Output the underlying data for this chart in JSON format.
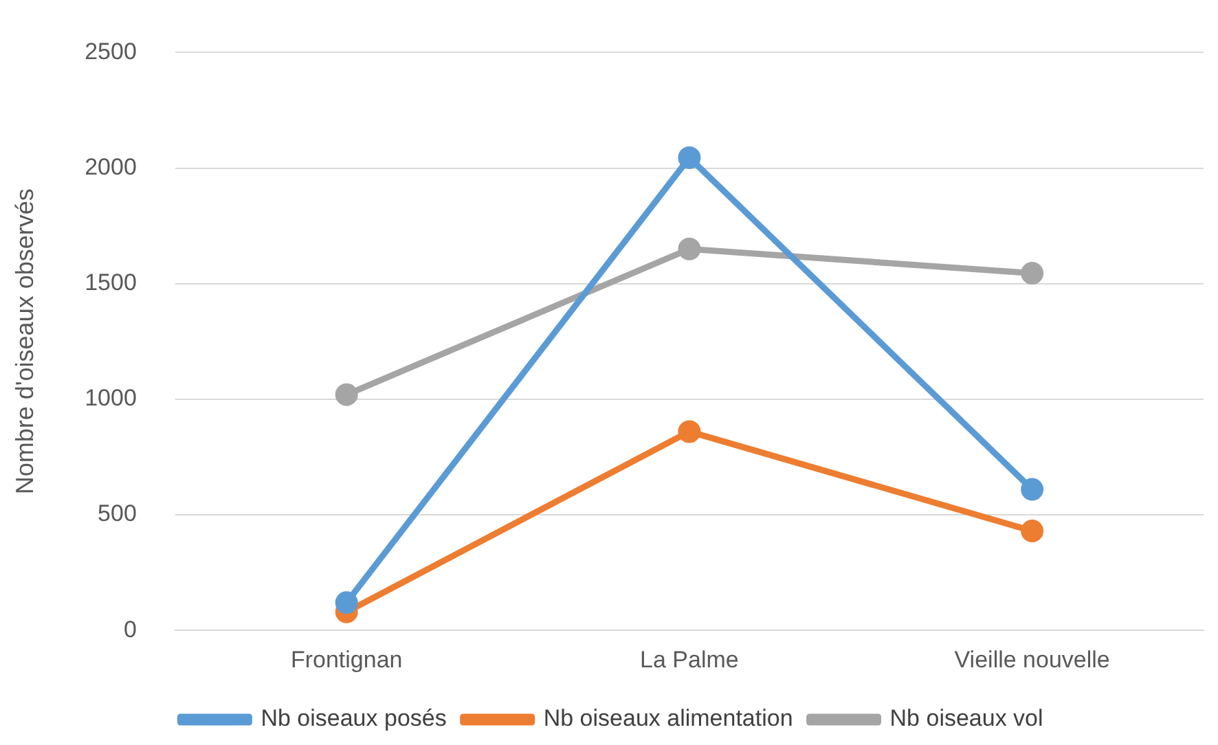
{
  "chart_data": {
    "type": "line",
    "ylabel": "Nombre d'oiseaux observés",
    "categories": [
      "Frontignan",
      "La Palme",
      "Vieille nouvelle"
    ],
    "series": [
      {
        "name": "Nb oiseaux posés",
        "color": "#5b9bd5",
        "values": [
          120,
          2045,
          610
        ]
      },
      {
        "name": "Nb oiseaux alimentation",
        "color": "#ed7d31",
        "values": [
          80,
          860,
          430
        ]
      },
      {
        "name": "Nb oiseaux vol",
        "color": "#a5a5a5",
        "values": [
          1020,
          1650,
          1545
        ]
      }
    ],
    "ylim": [
      0,
      2500
    ],
    "yticks": [
      0,
      500,
      1000,
      1500,
      2000,
      2500
    ],
    "grid": "y",
    "legend": "bottom",
    "marker": "circle",
    "line_style": "solid"
  }
}
